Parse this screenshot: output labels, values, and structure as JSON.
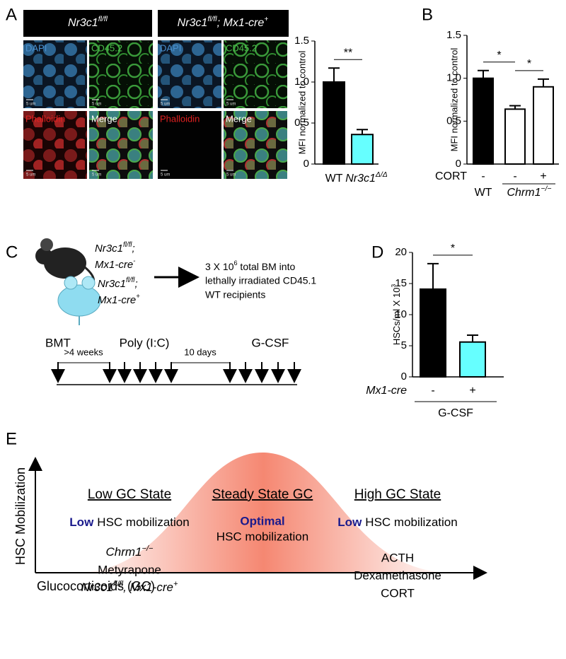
{
  "panel_labels": {
    "a": "A",
    "b": "B",
    "c": "C",
    "d": "D",
    "e": "E"
  },
  "microscopy": {
    "groups": [
      [
        "Nr3c1",
        {
          "sup": "fl/fl"
        }
      ],
      [
        "Nr3c1",
        {
          "sup": "fl/fl"
        },
        "; Mx1-cre",
        {
          "sup": "+"
        }
      ]
    ],
    "channels": [
      "DAPI",
      "CD45.2",
      "Phalloidin",
      "Merge"
    ],
    "scale_bar": "5 um"
  },
  "chart_data": [
    {
      "type": "bar",
      "ylabel": "MFI normalized to control",
      "categories": [
        "WT",
        [
          "Nr3c1",
          {
            "sup": "Δ/Δ"
          }
        ]
      ],
      "values": [
        1.0,
        0.36
      ],
      "errors": [
        0.17,
        0.06
      ],
      "colors": [
        "#000000",
        "#66ffff"
      ],
      "ylim": [
        0,
        1.5
      ],
      "yticks": [
        0,
        0.5,
        {
          "value": 1,
          "label": "1.0"
        },
        1.5
      ],
      "significance": [
        "**"
      ]
    },
    {
      "type": "bar",
      "ylabel": "MFI normalized to control",
      "categories": [
        "-",
        "-",
        "+"
      ],
      "factor": "CORT",
      "groups": [
        "WT",
        [
          "Chrm1",
          {
            "sup": "−/−"
          }
        ]
      ],
      "values": [
        1.0,
        0.64,
        0.9
      ],
      "errors": [
        0.09,
        0.04,
        0.09
      ],
      "colors": [
        "#000000",
        "#ffffff",
        "#ffffff"
      ],
      "ylim": [
        0,
        1.5
      ],
      "yticks": [
        0,
        0.5,
        {
          "value": 1,
          "label": "1.0"
        },
        1.5
      ],
      "significance": [
        "*",
        "*"
      ]
    },
    {
      "type": "bar",
      "ylabel": [
        "HSCs/ml X 10",
        {
          "sup": "3"
        }
      ],
      "categories": [
        "-",
        "+"
      ],
      "factor": "Mx1-cre",
      "groups": [
        "G-CSF"
      ],
      "values": [
        14.1,
        5.6
      ],
      "errors": [
        4.1,
        1.1
      ],
      "colors": [
        "#000000",
        "#66ffff"
      ],
      "ylim": [
        0,
        20
      ],
      "yticks": [
        0,
        5,
        10,
        15,
        20
      ],
      "significance": [
        "*"
      ]
    }
  ],
  "transplant": {
    "donors": [
      [
        [
          "Nr3c1",
          {
            "sup": "fl/fl"
          },
          ";"
        ],
        [
          "Mx1-cre",
          {
            "sup": "-"
          }
        ]
      ],
      [
        [
          "Nr3c1",
          {
            "sup": "fl/fl"
          },
          ";"
        ],
        [
          "Mx1-cre",
          {
            "sup": "+"
          }
        ]
      ]
    ],
    "recipients": [
      [
        "3 X 10",
        {
          "sup": "6"
        },
        " total BM into"
      ],
      "lethally irradiated CD45.1",
      "WT recipients"
    ],
    "timeline": {
      "start": "BMT",
      "wait": ">4 weeks",
      "injection": "Poly (I:C)",
      "interval": "10 days",
      "mobilizer": "G-CSF"
    }
  },
  "model": {
    "y_axis": "HSC Mobilization",
    "x_axis": "Glucocorticoids (GC)",
    "states": [
      {
        "heading": "Low GC State",
        "level": "Low",
        "outcome": "HSC mobilization",
        "examples": [
          [
            "Chrm1",
            {
              "sup": "−/−"
            }
          ],
          "Metyrapone",
          [
            "Nr3c1",
            {
              "sup": "fl/fl"
            },
            ", Mx1-cre",
            {
              "sup": "+"
            }
          ]
        ]
      },
      {
        "heading": "Steady State GC",
        "level": "Optimal",
        "outcome": "HSC mobilization"
      },
      {
        "heading": "High GC State",
        "level": "Low",
        "outcome": "HSC mobilization",
        "examples": [
          "ACTH",
          "Dexamethasone",
          "CORT"
        ]
      }
    ]
  }
}
